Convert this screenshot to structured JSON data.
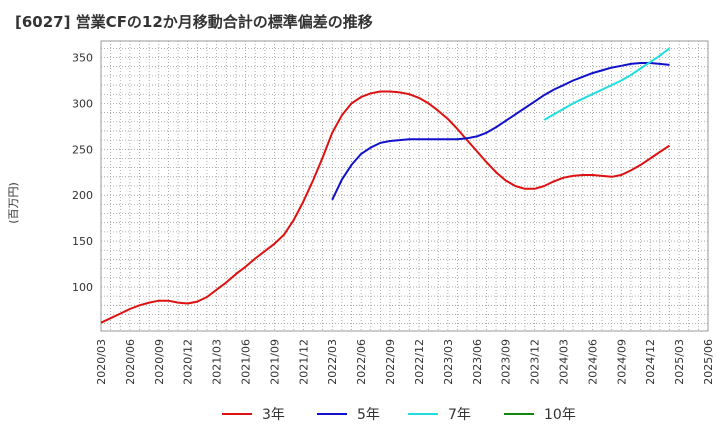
{
  "chart_data": {
    "type": "line",
    "title": "[6027]  営業CFの12か月移動合計の標準偏差の推移",
    "ylabel": "(百万円)",
    "xlabel": "",
    "ylim": [
      52,
      368
    ],
    "yticks": [
      100,
      150,
      200,
      250,
      300,
      350
    ],
    "xticks": [
      "2020/03",
      "2020/06",
      "2020/09",
      "2020/12",
      "2021/03",
      "2021/06",
      "2021/09",
      "2021/12",
      "2022/03",
      "2022/06",
      "2022/09",
      "2022/12",
      "2023/03",
      "2023/06",
      "2023/09",
      "2023/12",
      "2024/03",
      "2024/06",
      "2024/09",
      "2024/12",
      "2025/03",
      "2025/06"
    ],
    "grid": true,
    "legend_position": "bottom",
    "series": [
      {
        "name": "3年",
        "color": "#dd1111",
        "points": [
          [
            "2020/03",
            61
          ],
          [
            "2020/04",
            66
          ],
          [
            "2020/05",
            71
          ],
          [
            "2020/06",
            76
          ],
          [
            "2020/07",
            80
          ],
          [
            "2020/08",
            83
          ],
          [
            "2020/09",
            85
          ],
          [
            "2020/10",
            85
          ],
          [
            "2020/11",
            83
          ],
          [
            "2020/12",
            82
          ],
          [
            "2021/01",
            84
          ],
          [
            "2021/02",
            89
          ],
          [
            "2021/03",
            97
          ],
          [
            "2021/04",
            105
          ],
          [
            "2021/05",
            114
          ],
          [
            "2021/06",
            122
          ],
          [
            "2021/07",
            131
          ],
          [
            "2021/08",
            139
          ],
          [
            "2021/09",
            147
          ],
          [
            "2021/10",
            157
          ],
          [
            "2021/11",
            173
          ],
          [
            "2021/12",
            193
          ],
          [
            "2022/01",
            216
          ],
          [
            "2022/02",
            241
          ],
          [
            "2022/03",
            268
          ],
          [
            "2022/04",
            287
          ],
          [
            "2022/05",
            300
          ],
          [
            "2022/06",
            307
          ],
          [
            "2022/07",
            311
          ],
          [
            "2022/08",
            313
          ],
          [
            "2022/09",
            313
          ],
          [
            "2022/10",
            312
          ],
          [
            "2022/11",
            310
          ],
          [
            "2022/12",
            306
          ],
          [
            "2023/01",
            300
          ],
          [
            "2023/02",
            292
          ],
          [
            "2023/03",
            283
          ],
          [
            "2023/04",
            272
          ],
          [
            "2023/05",
            260
          ],
          [
            "2023/06",
            248
          ],
          [
            "2023/07",
            236
          ],
          [
            "2023/08",
            225
          ],
          [
            "2023/09",
            216
          ],
          [
            "2023/10",
            210
          ],
          [
            "2023/11",
            207
          ],
          [
            "2023/12",
            207
          ],
          [
            "2024/01",
            210
          ],
          [
            "2024/02",
            215
          ],
          [
            "2024/03",
            219
          ],
          [
            "2024/04",
            221
          ],
          [
            "2024/05",
            222
          ],
          [
            "2024/06",
            222
          ],
          [
            "2024/07",
            221
          ],
          [
            "2024/08",
            220
          ],
          [
            "2024/09",
            222
          ],
          [
            "2024/10",
            227
          ],
          [
            "2024/11",
            233
          ],
          [
            "2024/12",
            240
          ],
          [
            "2025/01",
            247
          ],
          [
            "2025/02",
            254
          ]
        ]
      },
      {
        "name": "5年",
        "color": "#1111cc",
        "points": [
          [
            "2022/03",
            195
          ],
          [
            "2022/04",
            217
          ],
          [
            "2022/05",
            233
          ],
          [
            "2022/06",
            245
          ],
          [
            "2022/07",
            252
          ],
          [
            "2022/08",
            257
          ],
          [
            "2022/09",
            259
          ],
          [
            "2022/10",
            260
          ],
          [
            "2022/11",
            261
          ],
          [
            "2022/12",
            261
          ],
          [
            "2023/01",
            261
          ],
          [
            "2023/02",
            261
          ],
          [
            "2023/03",
            261
          ],
          [
            "2023/04",
            261
          ],
          [
            "2023/05",
            262
          ],
          [
            "2023/06",
            264
          ],
          [
            "2023/07",
            268
          ],
          [
            "2023/08",
            274
          ],
          [
            "2023/09",
            281
          ],
          [
            "2023/10",
            288
          ],
          [
            "2023/11",
            295
          ],
          [
            "2023/12",
            302
          ],
          [
            "2024/01",
            309
          ],
          [
            "2024/02",
            315
          ],
          [
            "2024/03",
            320
          ],
          [
            "2024/04",
            325
          ],
          [
            "2024/05",
            329
          ],
          [
            "2024/06",
            333
          ],
          [
            "2024/07",
            336
          ],
          [
            "2024/08",
            339
          ],
          [
            "2024/09",
            341
          ],
          [
            "2024/10",
            343
          ],
          [
            "2024/11",
            344
          ],
          [
            "2024/12",
            344
          ],
          [
            "2025/01",
            343
          ],
          [
            "2025/02",
            342
          ]
        ]
      },
      {
        "name": "7年",
        "color": "#22dddd",
        "points": [
          [
            "2024/01",
            282
          ],
          [
            "2024/02",
            288
          ],
          [
            "2024/03",
            294
          ],
          [
            "2024/04",
            300
          ],
          [
            "2024/05",
            305
          ],
          [
            "2024/06",
            310
          ],
          [
            "2024/07",
            315
          ],
          [
            "2024/08",
            320
          ],
          [
            "2024/09",
            325
          ],
          [
            "2024/10",
            331
          ],
          [
            "2024/11",
            338
          ],
          [
            "2024/12",
            345
          ],
          [
            "2025/01",
            352
          ],
          [
            "2025/02",
            360
          ]
        ]
      },
      {
        "name": "10年",
        "color": "#118811",
        "points": []
      }
    ]
  }
}
